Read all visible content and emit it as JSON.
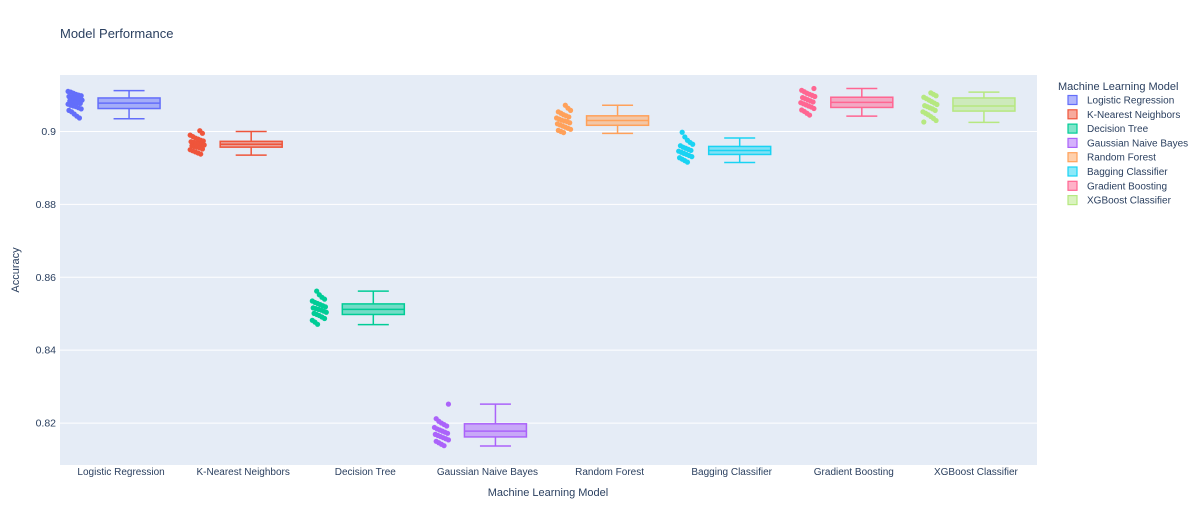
{
  "chart_data": {
    "type": "box",
    "title": "Model Performance",
    "xlabel": "Machine Learning Model",
    "ylabel": "Accuracy",
    "ylim": [
      0.8085,
      0.9155
    ],
    "yticks": [
      0.82,
      0.84,
      0.86,
      0.88,
      0.9
    ],
    "ytick_labels": [
      "0.82",
      "0.84",
      "0.86",
      "0.88",
      "0.9"
    ],
    "grid": true,
    "legend": {
      "title": "Machine Learning Model",
      "placement": "right"
    },
    "colors": {
      "plot_bg": "#E5ECF6",
      "grid": "#ffffff",
      "text": "#2a3f5f"
    },
    "categories": [
      "Logistic Regression",
      "K-Nearest Neighbors",
      "Decision Tree",
      "Gaussian Naive Bayes",
      "Random Forest",
      "Bagging Classifier",
      "Gradient Boosting",
      "XGBoost Classifier"
    ],
    "series": [
      {
        "name": "Logistic Regression",
        "color": "#636EFA",
        "stats": {
          "min": 0.9035,
          "q1": 0.9063,
          "median": 0.9078,
          "q3": 0.9092,
          "max": 0.9112
        },
        "points": [
          0.911,
          0.9108,
          0.9105,
          0.9102,
          0.91,
          0.9098,
          0.9096,
          0.9094,
          0.9092,
          0.909,
          0.9088,
          0.9086,
          0.9084,
          0.9082,
          0.908,
          0.9079,
          0.9077,
          0.9075,
          0.9072,
          0.907,
          0.9068,
          0.9065,
          0.9062,
          0.9058,
          0.9054,
          0.9048,
          0.9042,
          0.9037
        ]
      },
      {
        "name": "K-Nearest Neighbors",
        "color": "#EF553B",
        "stats": {
          "min": 0.8935,
          "q1": 0.8957,
          "median": 0.8965,
          "q3": 0.8973,
          "max": 0.9
        },
        "points": [
          0.9002,
          0.8995,
          0.899,
          0.8986,
          0.8982,
          0.8979,
          0.8976,
          0.8974,
          0.8972,
          0.897,
          0.8968,
          0.8966,
          0.8965,
          0.8963,
          0.8961,
          0.8959,
          0.8957,
          0.8955,
          0.8952,
          0.895,
          0.8947,
          0.8944,
          0.8941,
          0.8938
        ]
      },
      {
        "name": "Decision Tree",
        "color": "#00CC96",
        "stats": {
          "min": 0.847,
          "q1": 0.8498,
          "median": 0.8512,
          "q3": 0.8527,
          "max": 0.8562
        },
        "points": [
          0.8562,
          0.8552,
          0.8545,
          0.854,
          0.8535,
          0.8531,
          0.8528,
          0.8525,
          0.8522,
          0.8519,
          0.8516,
          0.8514,
          0.8512,
          0.851,
          0.8507,
          0.8504,
          0.8501,
          0.8498,
          0.8495,
          0.8491,
          0.8487,
          0.8482,
          0.8477,
          0.8471
        ]
      },
      {
        "name": "Gaussian Naive Bayes",
        "color": "#AB63FA",
        "stats": {
          "min": 0.8137,
          "q1": 0.8162,
          "median": 0.8178,
          "q3": 0.8198,
          "max": 0.8252
        },
        "points": [
          0.8252,
          0.8212,
          0.8205,
          0.82,
          0.8196,
          0.8192,
          0.8188,
          0.8184,
          0.8181,
          0.8178,
          0.8175,
          0.8172,
          0.8169,
          0.8166,
          0.8163,
          0.816,
          0.8157,
          0.8154,
          0.815,
          0.8146,
          0.8142,
          0.8138
        ]
      },
      {
        "name": "Random Forest",
        "color": "#FFA15A",
        "stats": {
          "min": 0.8995,
          "q1": 0.9017,
          "median": 0.903,
          "q3": 0.9043,
          "max": 0.9072
        },
        "points": [
          0.9072,
          0.9064,
          0.9058,
          0.9054,
          0.905,
          0.9046,
          0.9043,
          0.904,
          0.9037,
          0.9034,
          0.9031,
          0.9029,
          0.9027,
          0.9024,
          0.9021,
          0.9018,
          0.9015,
          0.9012,
          0.9009,
          0.9006,
          0.9003,
          0.9,
          0.8997
        ]
      },
      {
        "name": "Bagging Classifier",
        "color": "#19D3F3",
        "stats": {
          "min": 0.8915,
          "q1": 0.8937,
          "median": 0.8948,
          "q3": 0.8959,
          "max": 0.8982
        },
        "points": [
          0.8998,
          0.8985,
          0.8976,
          0.897,
          0.8965,
          0.8961,
          0.8957,
          0.8954,
          0.8951,
          0.8948,
          0.8946,
          0.8943,
          0.894,
          0.8937,
          0.8934,
          0.8931,
          0.8928,
          0.8924,
          0.892,
          0.8916
        ]
      },
      {
        "name": "Gradient Boosting",
        "color": "#FF6692",
        "stats": {
          "min": 0.9042,
          "q1": 0.9066,
          "median": 0.908,
          "q3": 0.9094,
          "max": 0.9118
        },
        "points": [
          0.9118,
          0.9113,
          0.9109,
          0.9105,
          0.9102,
          0.9099,
          0.9096,
          0.9093,
          0.909,
          0.9087,
          0.9084,
          0.9081,
          0.9079,
          0.9076,
          0.9073,
          0.907,
          0.9067,
          0.9063,
          0.9059,
          0.9055,
          0.905,
          0.9045
        ]
      },
      {
        "name": "XGBoost Classifier",
        "color": "#B6E880",
        "stats": {
          "min": 0.9025,
          "q1": 0.9056,
          "median": 0.907,
          "q3": 0.9092,
          "max": 0.9108
        },
        "points": [
          0.9106,
          0.9102,
          0.9098,
          0.9094,
          0.909,
          0.9086,
          0.9082,
          0.9078,
          0.9074,
          0.9071,
          0.9068,
          0.9065,
          0.9062,
          0.9058,
          0.9054,
          0.905,
          0.9046,
          0.9041,
          0.9036,
          0.903,
          0.9026
        ]
      }
    ]
  }
}
